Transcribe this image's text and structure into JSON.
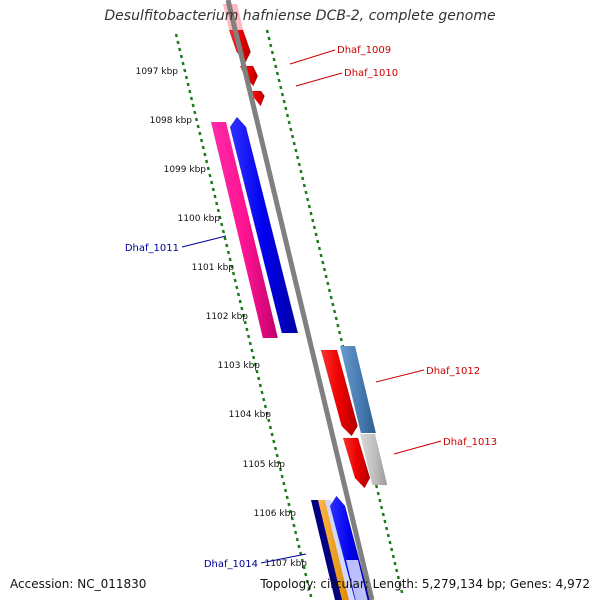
{
  "title": "Desulfitobacterium hafniense DCB-2, complete genome",
  "footer": {
    "accession": "Accession: NC_011830",
    "summary": "Topology: circular; Length: 5,279,134 bp; Genes: 4,972"
  },
  "colors": {
    "backbone": "#808080",
    "tick": "#1a7a1a",
    "forward_label": "#cc0000",
    "reverse_label": "#000099"
  },
  "kbp_labels": [
    "1097 kbp",
    "1098 kbp",
    "1099 kbp",
    "1100 kbp",
    "1101 kbp",
    "1102 kbp",
    "1103 kbp",
    "1104 kbp",
    "1105 kbp",
    "1106 kbp",
    "1107 kbp"
  ],
  "genes": [
    {
      "name": "Dhaf_1009",
      "strand": "forward"
    },
    {
      "name": "Dhaf_1010",
      "strand": "forward"
    },
    {
      "name": "Dhaf_1011",
      "strand": "reverse"
    },
    {
      "name": "Dhaf_1012",
      "strand": "forward"
    },
    {
      "name": "Dhaf_1013",
      "strand": "forward"
    },
    {
      "name": "Dhaf_1014",
      "strand": "reverse"
    }
  ]
}
